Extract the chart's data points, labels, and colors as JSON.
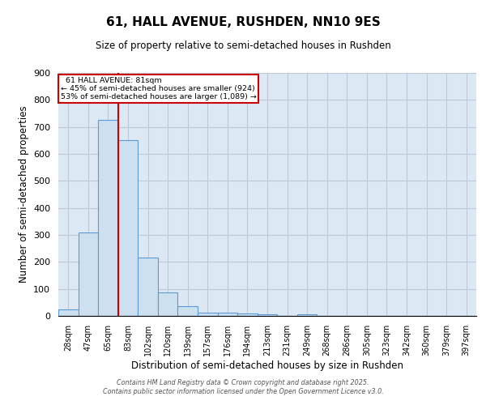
{
  "title": "61, HALL AVENUE, RUSHDEN, NN10 9ES",
  "subtitle": "Size of property relative to semi-detached houses in Rushden",
  "xlabel": "Distribution of semi-detached houses by size in Rushden",
  "ylabel": "Number of semi-detached properties",
  "categories": [
    "28sqm",
    "47sqm",
    "65sqm",
    "83sqm",
    "102sqm",
    "120sqm",
    "139sqm",
    "157sqm",
    "176sqm",
    "194sqm",
    "213sqm",
    "231sqm",
    "249sqm",
    "268sqm",
    "286sqm",
    "305sqm",
    "323sqm",
    "342sqm",
    "360sqm",
    "379sqm",
    "397sqm"
  ],
  "values": [
    25,
    310,
    725,
    650,
    215,
    88,
    37,
    13,
    12,
    10,
    6,
    0,
    5,
    0,
    0,
    0,
    0,
    0,
    0,
    0,
    0
  ],
  "bar_color": "#cce0f0",
  "bar_edge_color": "#5b9bd5",
  "vline_x": 2.5,
  "property_label": "61 HALL AVENUE: 81sqm",
  "pct_smaller": "45%",
  "n_smaller": "924",
  "pct_larger": "53%",
  "n_larger": "1,089",
  "annotation_box_color": "#cc0000",
  "vline_color": "#cc0000",
  "grid_color": "#c0c8d8",
  "background_color": "#dde8f5",
  "ylim": [
    0,
    900
  ],
  "footer1": "Contains HM Land Registry data © Crown copyright and database right 2025.",
  "footer2": "Contains public sector information licensed under the Open Government Licence v3.0."
}
